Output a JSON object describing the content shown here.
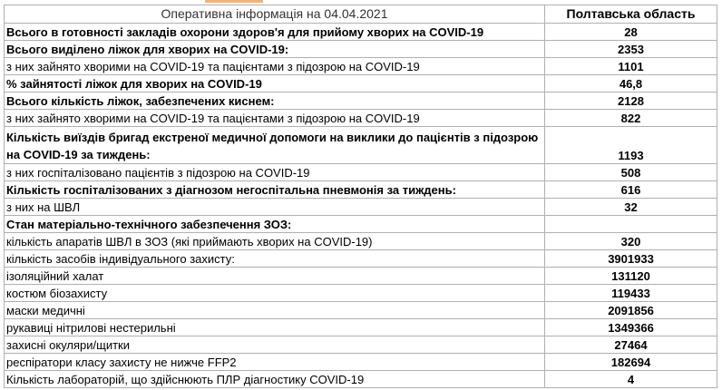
{
  "header": {
    "title": "Оперативна інформація  на 04.04.2021",
    "region": "Полтавська область"
  },
  "rows": [
    {
      "label": "Всього в готовності закладів охорони здоров'я для прийому хворих на COVID-19",
      "value": "28",
      "bold": true
    },
    {
      "label": "Всього виділено ліжок для хворих на COVID-19:",
      "value": "2353",
      "bold": true
    },
    {
      "label": "з них зайнято хворими на COVID-19 та пацієнтами з підозрою на COVID-19",
      "value": "1101",
      "bold": false
    },
    {
      "label": "% зайнятості ліжок для хворих на COVID-19",
      "value": "46,8",
      "bold": true
    },
    {
      "label": "Всього кількість ліжок, забезпечених киснем:",
      "value": "2128",
      "bold": true
    },
    {
      "label": "з них зайнято хворими на COVID-19 та пацієнтами з підозрою на COVID-19",
      "value": "822",
      "bold": false
    },
    {
      "label": "Кількість виїздів бригад екстреної медичної допомоги на виклики до пацієнтів з підозрою на COVID-19 за тиждень:",
      "value": "1193",
      "bold": true
    },
    {
      "label": "з них госпіталізовано пацієнтів з підозрою на COVID-19",
      "value": "508",
      "bold": false
    },
    {
      "label": "Кількість госпіталізованих з діагнозом негоспітальна пневмонія за тиждень:",
      "value": "616",
      "bold": true
    },
    {
      "label": "з них на ШВЛ",
      "value": "32",
      "bold": false
    },
    {
      "label": "Стан матеріально-технічного забезпечення ЗОЗ:",
      "value": "",
      "bold": true
    },
    {
      "label": "кількість апаратів ШВЛ в ЗОЗ (які приймають хворих на COVID-19)",
      "value": "320",
      "bold": false
    },
    {
      "label": "кількість засобів індивідуального захисту:",
      "value": "3901933",
      "bold": false
    },
    {
      "label": "ізоляційний халат",
      "value": "131120",
      "bold": false
    },
    {
      "label": "костюм біозахисту",
      "value": "119433",
      "bold": false
    },
    {
      "label": "маски медичні",
      "value": "2091856",
      "bold": false
    },
    {
      "label": "рукавиці нітрилові нестерильні",
      "value": "1349366",
      "bold": false
    },
    {
      "label": "захисні окуляри/щитки",
      "value": "27464",
      "bold": false
    },
    {
      "label": "респіратори класу захисту не нижче FFP2",
      "value": "182694",
      "bold": false
    },
    {
      "label": "Кількість лабораторій, що здійснюють ПЛР діагностику COVID-19",
      "value": "4",
      "bold": false
    }
  ]
}
